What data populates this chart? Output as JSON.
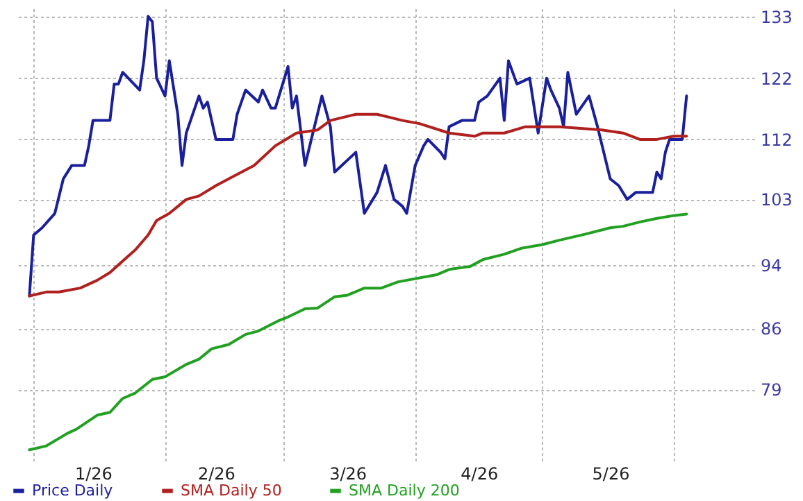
{
  "chart_data": {
    "type": "line",
    "log": "y",
    "grid": true,
    "legend": "bottom",
    "xlim": [
      "2025-12-28",
      "2026-06-20"
    ],
    "xticks": [
      {
        "value": "2026-01-01",
        "label": null
      },
      {
        "value": "2026-01-15",
        "label": "1/26"
      },
      {
        "value": "2026-02-01",
        "label": null
      },
      {
        "value": "2026-02-13",
        "label": "2/26"
      },
      {
        "value": "2026-03-01",
        "label": null
      },
      {
        "value": "2026-03-16",
        "label": "3/26"
      },
      {
        "value": "2026-04-01",
        "label": null
      },
      {
        "value": "2026-04-16",
        "label": "4/26"
      },
      {
        "value": "2026-05-01",
        "label": null
      },
      {
        "value": "2026-05-17",
        "label": "5/26"
      },
      {
        "value": "2026-06-01",
        "label": null
      }
    ],
    "ylim": [
      71.5,
      134.5
    ],
    "yticks": [
      79,
      86,
      94,
      103,
      112,
      122,
      133
    ],
    "series": [
      {
        "name": "Price Daily",
        "color": "#1a1f9c",
        "x": [
          "2025-12-31",
          "2026-01-01",
          "2026-01-03",
          "2026-01-06",
          "2026-01-08",
          "2026-01-10",
          "2026-01-13",
          "2026-01-14",
          "2026-01-15",
          "2026-01-18",
          "2026-01-19",
          "2026-01-20",
          "2026-01-21",
          "2026-01-22",
          "2026-01-26",
          "2026-01-27",
          "2026-01-28",
          "2026-01-29",
          "2026-01-30",
          "2026-02-01",
          "2026-02-02",
          "2026-02-04",
          "2026-02-05",
          "2026-02-06",
          "2026-02-09",
          "2026-02-10",
          "2026-02-11",
          "2026-02-13",
          "2026-02-17",
          "2026-02-18",
          "2026-02-20",
          "2026-02-23",
          "2026-02-24",
          "2026-02-26",
          "2026-02-27",
          "2026-03-02",
          "2026-03-03",
          "2026-03-04",
          "2026-03-06",
          "2026-03-10",
          "2026-03-12",
          "2026-03-13",
          "2026-03-18",
          "2026-03-20",
          "2026-03-23",
          "2026-03-25",
          "2026-03-27",
          "2026-03-29",
          "2026-03-30",
          "2026-04-01",
          "2026-04-03",
          "2026-04-04",
          "2026-04-07",
          "2026-04-08",
          "2026-04-09",
          "2026-04-12",
          "2026-04-15",
          "2026-04-16",
          "2026-04-18",
          "2026-04-21",
          "2026-04-22",
          "2026-04-23",
          "2026-04-25",
          "2026-04-28",
          "2026-04-30",
          "2026-05-02",
          "2026-05-03",
          "2026-05-05",
          "2026-05-06",
          "2026-05-07",
          "2026-05-09",
          "2026-05-12",
          "2026-05-14",
          "2026-05-17",
          "2026-05-19",
          "2026-05-21",
          "2026-05-23",
          "2026-05-24",
          "2026-05-27",
          "2026-05-28",
          "2026-05-29",
          "2026-05-30",
          "2026-05-31",
          "2026-06-03",
          "2026-06-04"
        ],
        "values": [
          90,
          98,
          99,
          101,
          106,
          108,
          108,
          111,
          115,
          115,
          115,
          121,
          121,
          123,
          120,
          125,
          133,
          132,
          122,
          119,
          125,
          116,
          108,
          113,
          119,
          117,
          118,
          112,
          112,
          116,
          120,
          118,
          120,
          117,
          117,
          124,
          117,
          119,
          108,
          119,
          114,
          107,
          110,
          101,
          104,
          108,
          103,
          102,
          101,
          108,
          111,
          112,
          110,
          109,
          114,
          115,
          115,
          118,
          119,
          122,
          115,
          125,
          121,
          122,
          113,
          122,
          120,
          117,
          114,
          123,
          116,
          119,
          114,
          106,
          105,
          103,
          104,
          104,
          104,
          107,
          106,
          110,
          112,
          112,
          119
        ]
      },
      {
        "name": "SMA Daily 50",
        "color": "#b0201e",
        "x": [
          "2025-12-31",
          "2026-01-04",
          "2026-01-07",
          "2026-01-12",
          "2026-01-16",
          "2026-01-19",
          "2026-01-23",
          "2026-01-25",
          "2026-01-28",
          "2026-01-30",
          "2026-02-02",
          "2026-02-06",
          "2026-02-09",
          "2026-02-13",
          "2026-02-16",
          "2026-02-22",
          "2026-02-27",
          "2026-03-04",
          "2026-03-09",
          "2026-03-12",
          "2026-03-18",
          "2026-03-23",
          "2026-03-26",
          "2026-03-29",
          "2026-04-02",
          "2026-04-09",
          "2026-04-15",
          "2026-04-17",
          "2026-04-22",
          "2026-04-27",
          "2026-05-02",
          "2026-05-05",
          "2026-05-15",
          "2026-05-20",
          "2026-05-24",
          "2026-05-28",
          "2026-06-01",
          "2026-06-04"
        ],
        "values": [
          90,
          90.5,
          90.5,
          91,
          92,
          93,
          95,
          96,
          98,
          100,
          101,
          103,
          103.5,
          105,
          106,
          108,
          111,
          113,
          113.5,
          115,
          116,
          116,
          115.5,
          115,
          114.5,
          113,
          112.5,
          113,
          113,
          114,
          114,
          114,
          113.5,
          113,
          112,
          112,
          112.5,
          112.5
        ]
      },
      {
        "name": "SMA Daily 200",
        "color": "#22a022",
        "x": [
          "2025-12-31",
          "2026-01-04",
          "2026-01-09",
          "2026-01-11",
          "2026-01-16",
          "2026-01-19",
          "2026-01-22",
          "2026-01-25",
          "2026-01-29",
          "2026-02-01",
          "2026-02-06",
          "2026-02-09",
          "2026-02-12",
          "2026-02-16",
          "2026-02-20",
          "2026-02-23",
          "2026-02-28",
          "2026-03-02",
          "2026-03-06",
          "2026-03-09",
          "2026-03-13",
          "2026-03-16",
          "2026-03-20",
          "2026-03-24",
          "2026-03-28",
          "2026-03-30",
          "2026-04-06",
          "2026-04-09",
          "2026-04-14",
          "2026-04-17",
          "2026-04-22",
          "2026-04-26",
          "2026-05-01",
          "2026-05-05",
          "2026-05-11",
          "2026-05-17",
          "2026-05-20",
          "2026-05-24",
          "2026-05-28",
          "2026-06-01",
          "2026-06-04"
        ],
        "values": [
          72.6,
          73,
          74.3,
          74.7,
          76.2,
          76.5,
          78,
          78.6,
          80.1,
          80.4,
          81.8,
          82.4,
          83.6,
          84.1,
          85.3,
          85.7,
          87,
          87.4,
          88.4,
          88.5,
          89.9,
          90.1,
          91,
          91,
          91.8,
          92,
          92.7,
          93.4,
          93.8,
          94.7,
          95.4,
          96.2,
          96.7,
          97.3,
          98.1,
          99,
          99.2,
          99.8,
          100.3,
          100.7,
          100.9
        ]
      }
    ]
  }
}
